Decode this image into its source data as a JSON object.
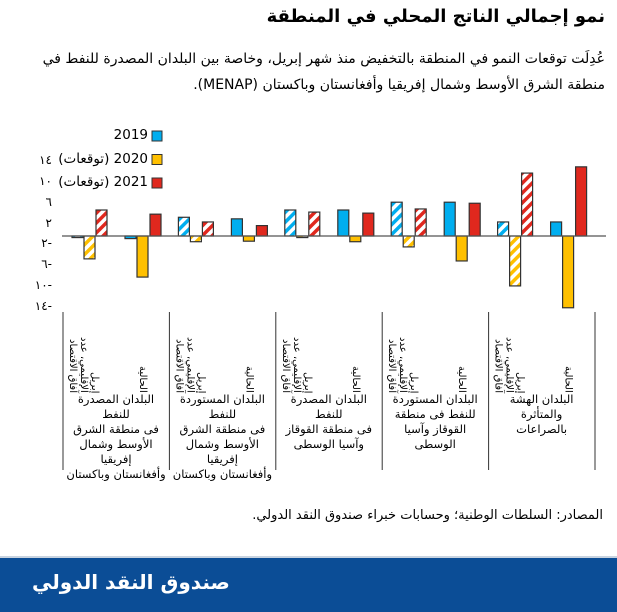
{
  "header": {
    "title": "نمو إجمالي الناتج المحلي في المنطقة",
    "subtitle": "عُدِلَت توقعات النمو في المنطقة بالتخفيض منذ شهر إبريل، وخاصة بين البلدان المصدرة للنفط في منطقة الشرق الأوسط وشمال إفريقيا وأفغانستان وباكستان (MENAP)."
  },
  "chart_data": {
    "type": "bar",
    "ylim": [
      -14,
      14
    ],
    "yticks": [
      14,
      10,
      6,
      2,
      -2,
      -6,
      -10,
      -14
    ],
    "ytick_labels": [
      "١٤",
      "١٠",
      "٦",
      "٢",
      "٢-",
      "٦-",
      "١٠-",
      "١٤-"
    ],
    "legend_placement": "top-left",
    "legend": [
      "2019",
      "2020 (توقعات)",
      "2021 (توقعات)"
    ],
    "colors": {
      "2019": "#00aeef",
      "2020": "#ffc000",
      "2021": "#e0281e"
    },
    "hatched_meaning": "آفاق الاقتصاد الإقليمي، عدد إبريل",
    "subcategory_labels": [
      "آفاق الاقتصاد\nالإقليمي، عدد\nإبريل",
      "الحالية"
    ],
    "categories": [
      "البلدان المصدرة للنفط في منطقة الشرق الأوسط وشمال إفريقيا وأفغانستان وباكستان",
      "البلدان المستوردة للنفط في منطقة الشرق الأوسط وشمال إفريقيا وأفغانستان وباكستان",
      "البلدان المصدرة للنفط في منطقة القوقاز وآسيا الوسطى",
      "البلدان المستوردة للنفط في منطقة القوقاز وآسيا الوسطى",
      "البلدان الهشة والمتأثرة بالصراعات"
    ],
    "series": [
      {
        "name": "2019",
        "edition": "april",
        "values": [
          -0.3,
          3.6,
          5.0,
          6.5,
          2.7
        ]
      },
      {
        "name": "2020 (توقعات)",
        "edition": "april",
        "values": [
          -4.4,
          -1.1,
          -0.3,
          -2.1,
          -9.6
        ]
      },
      {
        "name": "2021 (توقعات)",
        "edition": "april",
        "values": [
          5.0,
          2.7,
          4.6,
          5.2,
          12.1
        ]
      },
      {
        "name": "2019",
        "edition": "current",
        "values": [
          -0.5,
          3.3,
          5.0,
          6.5,
          2.7
        ]
      },
      {
        "name": "2020 (توقعات)",
        "edition": "current",
        "values": [
          -7.9,
          -1.0,
          -1.1,
          -4.8,
          -13.8
        ]
      },
      {
        "name": "2021 (توقعات)",
        "edition": "current",
        "values": [
          4.2,
          2.0,
          4.4,
          6.3,
          13.3
        ]
      }
    ]
  },
  "category_labels_display": [
    "البلدان المصدرة للنفط\nفى منطقة الشرق\nالأوسط وشمال إفريقيا\nوأفغانستان وباكستان",
    "البلدان المستوردة للنفط\nفى منطقة الشرق\nالأوسط وشمال إفريقيا\nوأفغانستان وباكستان",
    "البلدان المصدرة للنفط\nفى منطقة القوقاز\nوآسيا الوسطى",
    "البلدان المستوردة\nللنفط فى منطقة\nالقوقاز وآسيا الوسطى",
    "البلدان الهشة والمتأثرة\nبالصراعات"
  ],
  "source": "المصادر: السلطات الوطنية؛ وحسابات خبراء صندوق النقد الدولي.",
  "footer": {
    "brand": "صندوق النقد الدولي"
  }
}
